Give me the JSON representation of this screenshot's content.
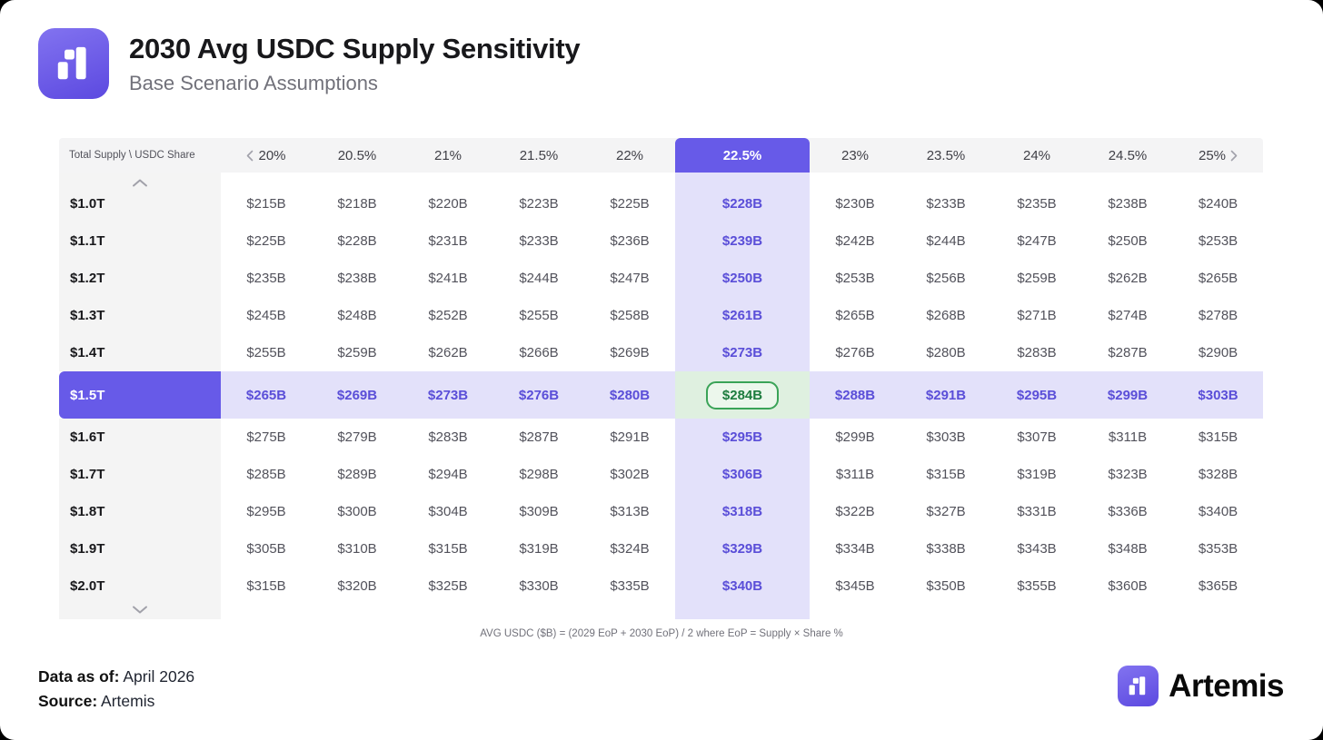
{
  "header": {
    "title": "2030 Avg USDC Supply Sensitivity",
    "subtitle": "Base Scenario Assumptions",
    "logo_icon": "artemis-logo"
  },
  "table": {
    "corner_label": "Total Supply \\ USDC Share",
    "columns": [
      "20%",
      "20.5%",
      "21%",
      "21.5%",
      "22%",
      "22.5%",
      "23%",
      "23.5%",
      "24%",
      "24.5%",
      "25%"
    ],
    "highlighted_column": "22.5%",
    "highlighted_row": "$1.5T",
    "selected_cell": {
      "row": "$1.5T",
      "column": "22.5%",
      "value": "$284B"
    },
    "scroll_icons": [
      "chevron-left-icon",
      "chevron-right-icon",
      "chevron-up-icon",
      "chevron-down-icon"
    ],
    "rows": [
      {
        "label": "$1.0T",
        "values": [
          "$215B",
          "$218B",
          "$220B",
          "$223B",
          "$225B",
          "$228B",
          "$230B",
          "$233B",
          "$235B",
          "$238B",
          "$240B"
        ]
      },
      {
        "label": "$1.1T",
        "values": [
          "$225B",
          "$228B",
          "$231B",
          "$233B",
          "$236B",
          "$239B",
          "$242B",
          "$244B",
          "$247B",
          "$250B",
          "$253B"
        ]
      },
      {
        "label": "$1.2T",
        "values": [
          "$235B",
          "$238B",
          "$241B",
          "$244B",
          "$247B",
          "$250B",
          "$253B",
          "$256B",
          "$259B",
          "$262B",
          "$265B"
        ]
      },
      {
        "label": "$1.3T",
        "values": [
          "$245B",
          "$248B",
          "$252B",
          "$255B",
          "$258B",
          "$261B",
          "$265B",
          "$268B",
          "$271B",
          "$274B",
          "$278B"
        ]
      },
      {
        "label": "$1.4T",
        "values": [
          "$255B",
          "$259B",
          "$262B",
          "$266B",
          "$269B",
          "$273B",
          "$276B",
          "$280B",
          "$283B",
          "$287B",
          "$290B"
        ]
      },
      {
        "label": "$1.5T",
        "values": [
          "$265B",
          "$269B",
          "$273B",
          "$276B",
          "$280B",
          "$284B",
          "$288B",
          "$291B",
          "$295B",
          "$299B",
          "$303B"
        ]
      },
      {
        "label": "$1.6T",
        "values": [
          "$275B",
          "$279B",
          "$283B",
          "$287B",
          "$291B",
          "$295B",
          "$299B",
          "$303B",
          "$307B",
          "$311B",
          "$315B"
        ]
      },
      {
        "label": "$1.7T",
        "values": [
          "$285B",
          "$289B",
          "$294B",
          "$298B",
          "$302B",
          "$306B",
          "$311B",
          "$315B",
          "$319B",
          "$323B",
          "$328B"
        ]
      },
      {
        "label": "$1.8T",
        "values": [
          "$295B",
          "$300B",
          "$304B",
          "$309B",
          "$313B",
          "$318B",
          "$322B",
          "$327B",
          "$331B",
          "$336B",
          "$340B"
        ]
      },
      {
        "label": "$1.9T",
        "values": [
          "$305B",
          "$310B",
          "$315B",
          "$319B",
          "$324B",
          "$329B",
          "$334B",
          "$338B",
          "$343B",
          "$348B",
          "$353B"
        ]
      },
      {
        "label": "$2.0T",
        "values": [
          "$315B",
          "$320B",
          "$325B",
          "$330B",
          "$335B",
          "$340B",
          "$345B",
          "$350B",
          "$355B",
          "$360B",
          "$365B"
        ]
      }
    ]
  },
  "footnote": "AVG USDC ($B) = (2029 EoP + 2030 EoP) / 2 where EoP = Supply × Share %",
  "footer": {
    "data_as_of_label": "Data as of:",
    "data_as_of_value": " April 2026",
    "source_label": "Source:",
    "source_value": " Artemis",
    "brand_name": "Artemis",
    "brand_icon": "artemis-logo"
  },
  "colors": {
    "accent": "#675ae8",
    "accent_soft": "#e3e1fa",
    "accent_text": "#5a4ed8",
    "selected_bg": "#dff0e0",
    "selected_pill_bg": "#ecf7ec",
    "selected_border": "#3aa357",
    "selected_text": "#1d7c3e",
    "header_row_bg": "#f4f4f5",
    "label_col_bg": "#f4f4f4"
  },
  "chart_data": {
    "type": "table",
    "title": "2030 Avg USDC Supply Sensitivity",
    "subtitle": "Base Scenario Assumptions",
    "xlabel": "USDC Share %",
    "ylabel": "Total Supply",
    "unit": "USD billions",
    "columns_pct": [
      20,
      20.5,
      21,
      21.5,
      22,
      22.5,
      23,
      23.5,
      24,
      24.5,
      25
    ],
    "rows_supply_trillions": [
      1.0,
      1.1,
      1.2,
      1.3,
      1.4,
      1.5,
      1.6,
      1.7,
      1.8,
      1.9,
      2.0
    ],
    "values_billions": [
      [
        215,
        218,
        220,
        223,
        225,
        228,
        230,
        233,
        235,
        238,
        240
      ],
      [
        225,
        228,
        231,
        233,
        236,
        239,
        242,
        244,
        247,
        250,
        253
      ],
      [
        235,
        238,
        241,
        244,
        247,
        250,
        253,
        256,
        259,
        262,
        265
      ],
      [
        245,
        248,
        252,
        255,
        258,
        261,
        265,
        268,
        271,
        274,
        278
      ],
      [
        255,
        259,
        262,
        266,
        269,
        273,
        276,
        280,
        283,
        287,
        290
      ],
      [
        265,
        269,
        273,
        276,
        280,
        284,
        288,
        291,
        295,
        299,
        303
      ],
      [
        275,
        279,
        283,
        287,
        291,
        295,
        299,
        303,
        307,
        311,
        315
      ],
      [
        285,
        289,
        294,
        298,
        302,
        306,
        311,
        315,
        319,
        323,
        328
      ],
      [
        295,
        300,
        304,
        309,
        313,
        318,
        322,
        327,
        331,
        336,
        340
      ],
      [
        305,
        310,
        315,
        319,
        324,
        329,
        334,
        338,
        343,
        348,
        353
      ],
      [
        315,
        320,
        325,
        330,
        335,
        340,
        345,
        350,
        355,
        360,
        365
      ]
    ],
    "highlighted_column_pct": 22.5,
    "highlighted_row_trillions": 1.5,
    "selected_value_billions": 284,
    "footnote": "AVG USDC ($B) = (2029 EoP + 2030 EoP) / 2 where EoP = Supply × Share %"
  }
}
